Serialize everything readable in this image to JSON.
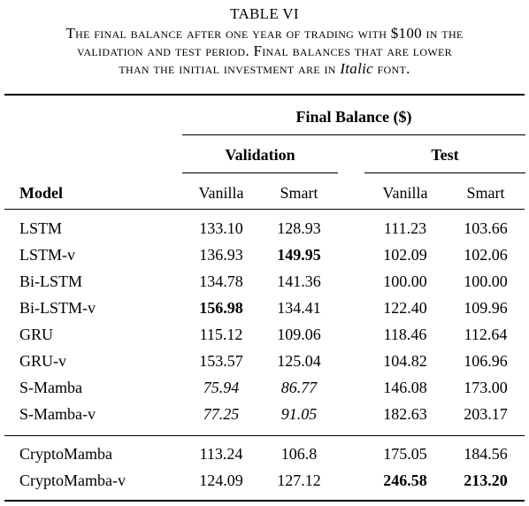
{
  "caption": {
    "title": "TABLE VI",
    "line1": "The final balance after one year of trading with $100 in the",
    "line2": "validation and test period. Final balances that are lower",
    "line3_pre": "than the initial investment are in ",
    "line3_italic": "Italic",
    "line3_post": " font."
  },
  "header": {
    "group": "Final Balance ($)",
    "validation": "Validation",
    "test": "Test",
    "model": "Model",
    "vanilla": "Vanilla",
    "smart": "Smart"
  },
  "rows": [
    {
      "model": "LSTM",
      "val_vanilla": "133.10",
      "val_smart": "128.93",
      "test_vanilla": "111.23",
      "test_smart": "103.66"
    },
    {
      "model": "LSTM-v",
      "val_vanilla": "136.93",
      "val_smart": "149.95",
      "test_vanilla": "102.09",
      "test_smart": "102.06"
    },
    {
      "model": "Bi-LSTM",
      "val_vanilla": "134.78",
      "val_smart": "141.36",
      "test_vanilla": "100.00",
      "test_smart": "100.00"
    },
    {
      "model": "Bi-LSTM-v",
      "val_vanilla": "156.98",
      "val_smart": "134.41",
      "test_vanilla": "122.40",
      "test_smart": "109.96"
    },
    {
      "model": "GRU",
      "val_vanilla": "115.12",
      "val_smart": "109.06",
      "test_vanilla": "118.46",
      "test_smart": "112.64"
    },
    {
      "model": "GRU-v",
      "val_vanilla": "153.57",
      "val_smart": "125.04",
      "test_vanilla": "104.82",
      "test_smart": "106.96"
    },
    {
      "model": "S-Mamba",
      "val_vanilla": "75.94",
      "val_smart": "86.77",
      "test_vanilla": "146.08",
      "test_smart": "173.00"
    },
    {
      "model": "S-Mamba-v",
      "val_vanilla": "77.25",
      "val_smart": "91.05",
      "test_vanilla": "182.63",
      "test_smart": "203.17"
    },
    {
      "model": "CryptoMamba",
      "val_vanilla": "113.24",
      "val_smart": "106.8",
      "test_vanilla": "175.05",
      "test_smart": "184.56"
    },
    {
      "model": "CryptoMamba-v",
      "val_vanilla": "124.09",
      "val_smart": "127.12",
      "test_vanilla": "246.58",
      "test_smart": "213.20"
    }
  ]
}
